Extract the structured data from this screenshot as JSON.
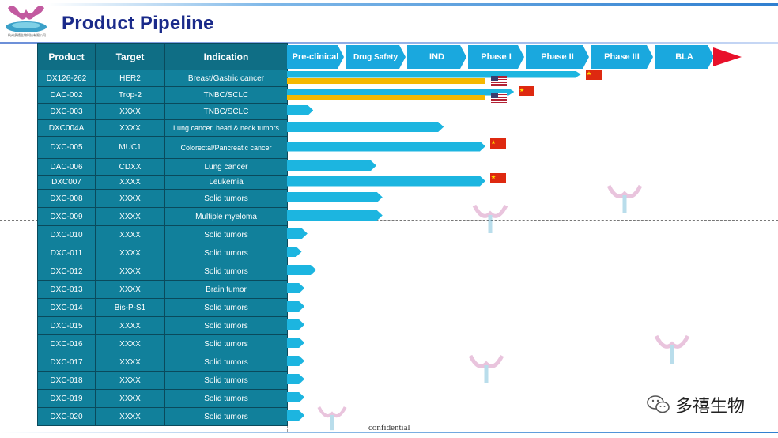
{
  "header": {
    "title": "Product Pipeline",
    "logo_text": "杭州多禧生物科技有限公司"
  },
  "table": {
    "columns": [
      "Product",
      "Target",
      "Indication"
    ],
    "rows": [
      [
        "DX126-262",
        "HER2",
        "Breast/Gastric cancer"
      ],
      [
        "DAC-002",
        "Trop-2",
        "TNBC/SCLC"
      ],
      [
        "DXC-003",
        "XXXX",
        "TNBC/SCLC"
      ],
      [
        "DXC004A",
        "XXXX",
        "Lung cancer, head & neck tumors"
      ],
      [
        "DXC-005",
        "MUC1",
        "Colorectal/Pancreatic cancer"
      ],
      [
        "DAC-006",
        "CDXX",
        "Lung cancer"
      ],
      [
        "DXC007",
        "XXXX",
        "Leukemia"
      ],
      [
        "DXC-008",
        "XXXX",
        "Solid tumors"
      ],
      [
        "DXC-009",
        "XXXX",
        "Multiple myeloma"
      ],
      [
        "DXC-010",
        "XXXX",
        "Solid tumors"
      ],
      [
        "DXC-011",
        "XXXX",
        "Solid tumors"
      ],
      [
        "DXC-012",
        "XXXX",
        "Solid tumors"
      ],
      [
        "DXC-013",
        "XXXX",
        "Brain tumor"
      ],
      [
        "DXC-014",
        "Bis-P-S1",
        "Solid tumors"
      ],
      [
        "DXC-015",
        "XXXX",
        "Solid tumors"
      ],
      [
        "DXC-016",
        "XXXX",
        "Solid tumors"
      ],
      [
        "DXC-017",
        "XXXX",
        "Solid tumors"
      ],
      [
        "DXC-018",
        "XXXX",
        "Solid tumors"
      ],
      [
        "DXC-019",
        "XXXX",
        "Solid tumors"
      ],
      [
        "DXC-020",
        "XXXX",
        "Solid tumors"
      ]
    ]
  },
  "stages": [
    "Pre-clinical",
    "Drug Safety",
    "IND",
    "Phase I",
    "Phase II",
    "Phase III",
    "BLA"
  ],
  "progress": [
    {
      "stage": 4.85,
      "flags": [
        "cn"
      ],
      "yellow_bar_stage": 3.3,
      "yellow_flags": [
        "us"
      ]
    },
    {
      "stage": 3.8,
      "flags": [
        "cn"
      ],
      "yellow_bar_stage": 3.3,
      "yellow_flags": [
        "us"
      ]
    },
    {
      "stage": 0.45
    },
    {
      "stage": 2.6
    },
    {
      "stage": 3.3,
      "flags": [
        "cn"
      ]
    },
    {
      "stage": 1.5
    },
    {
      "stage": 3.3,
      "flags": [
        "cn"
      ]
    },
    {
      "stage": 1.6
    },
    {
      "stage": 1.6
    },
    {
      "stage": 0.35
    },
    {
      "stage": 0.25
    },
    {
      "stage": 0.5
    },
    {
      "stage": 0.3
    },
    {
      "stage": 0.3
    },
    {
      "stage": 0.3
    },
    {
      "stage": 0.3
    },
    {
      "stage": 0.3
    },
    {
      "stage": 0.3
    },
    {
      "stage": 0.3
    },
    {
      "stage": 0.3
    }
  ],
  "colors": {
    "stage": "#1aa8de",
    "bar": "#1cb5e0",
    "yellow": "#f5b800",
    "end_arrow": "#e8102a"
  },
  "footer": {
    "confidential": "confidential",
    "wechat": "多禧生物"
  }
}
